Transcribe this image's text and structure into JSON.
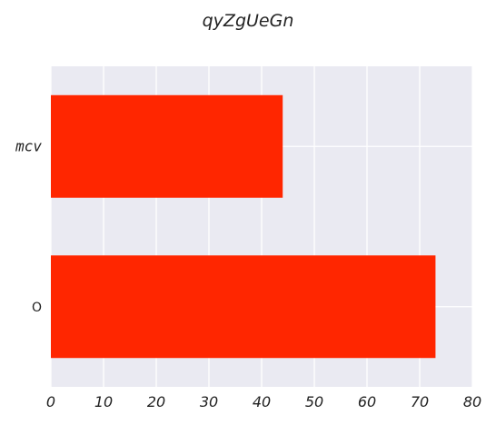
{
  "chart_data": {
    "type": "bar",
    "orientation": "horizontal",
    "title": "qyZgUeGn",
    "categories": [
      "mcv",
      "O"
    ],
    "values": [
      44,
      73
    ],
    "xlabel": "",
    "ylabel": "",
    "xlim": [
      0,
      80
    ],
    "xticks": [
      0,
      10,
      20,
      30,
      40,
      50,
      60,
      70,
      80
    ],
    "grid": true,
    "colors": {
      "bar": "#ff2600",
      "plot_background": "#eaeaf2",
      "grid": "#ffffff"
    }
  }
}
